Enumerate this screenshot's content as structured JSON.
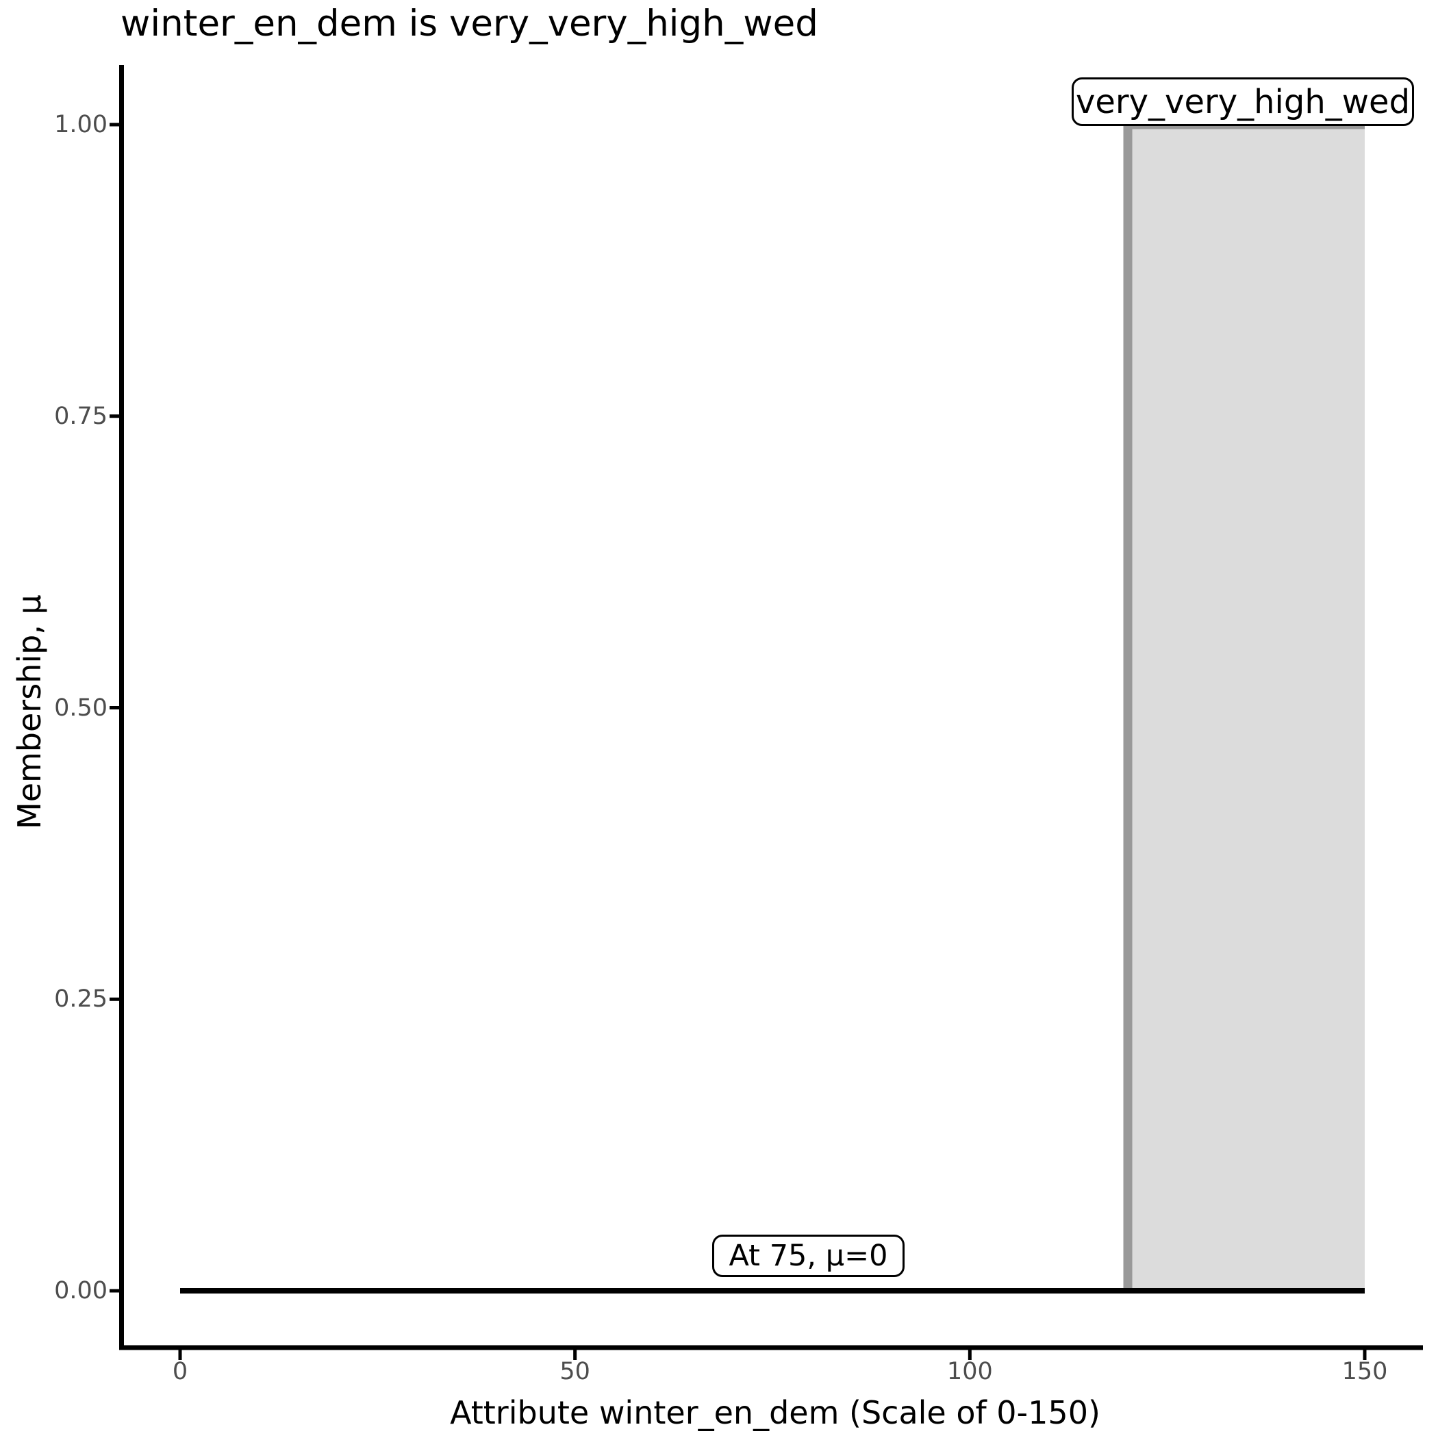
{
  "title": "winter_en_dem is very_very_high_wed",
  "axes": {
    "x": {
      "label": "Attribute winter_en_dem (Scale of 0-150)",
      "ticks": [
        {
          "value": 0,
          "label": "0"
        },
        {
          "value": 50,
          "label": "50"
        },
        {
          "value": 100,
          "label": "100"
        },
        {
          "value": 150,
          "label": "150"
        }
      ]
    },
    "y": {
      "label": "Membership, μ",
      "ticks": [
        {
          "value": 0,
          "label": "0.00"
        },
        {
          "value": 0.25,
          "label": "0.25"
        },
        {
          "value": 0.5,
          "label": "0.50"
        },
        {
          "value": 0.75,
          "label": "0.75"
        },
        {
          "value": 1,
          "label": "1.00"
        }
      ]
    }
  },
  "annotations": {
    "set_label": "very_very_high_wed",
    "point_label": "At 75, μ=0"
  },
  "colors": {
    "fill": "#dcdcdc",
    "boundary": "#999999",
    "baseline": "#000000",
    "axis": "#000000",
    "tick_text": "#4d4d4d"
  },
  "chart_data": {
    "type": "area",
    "title": "winter_en_dem is very_very_high_wed",
    "xlabel": "Attribute winter_en_dem (Scale of 0-150)",
    "ylabel": "Membership, μ",
    "xlim": [
      0,
      150
    ],
    "ylim": [
      0,
      1
    ],
    "x_ticks": [
      0,
      50,
      100,
      150
    ],
    "y_ticks": [
      0.0,
      0.25,
      0.5,
      0.75,
      1.0
    ],
    "grid": false,
    "legend": "none",
    "series": [
      {
        "name": "very_very_high_wed_fill",
        "shape": "polygon",
        "x": [
          120,
          120,
          150,
          150
        ],
        "y": [
          0,
          1,
          1,
          0
        ],
        "fill": "#dcdcdc"
      },
      {
        "name": "very_very_high_wed_boundary",
        "shape": "polyline",
        "x": [
          120,
          120,
          150
        ],
        "y": [
          0,
          1,
          1
        ],
        "stroke": "#999999",
        "stroke_width": 13
      },
      {
        "name": "membership_zero_baseline",
        "shape": "polyline",
        "x": [
          0,
          150
        ],
        "y": [
          0,
          0
        ],
        "stroke": "#000000",
        "stroke_width": 8
      }
    ],
    "annotations": [
      {
        "text": "very_very_high_wed",
        "x": 135,
        "y": 1.0,
        "position": "above-top"
      },
      {
        "text": "At 75, μ=0",
        "x": 75,
        "y": 0.0,
        "position": "above-baseline"
      }
    ]
  }
}
